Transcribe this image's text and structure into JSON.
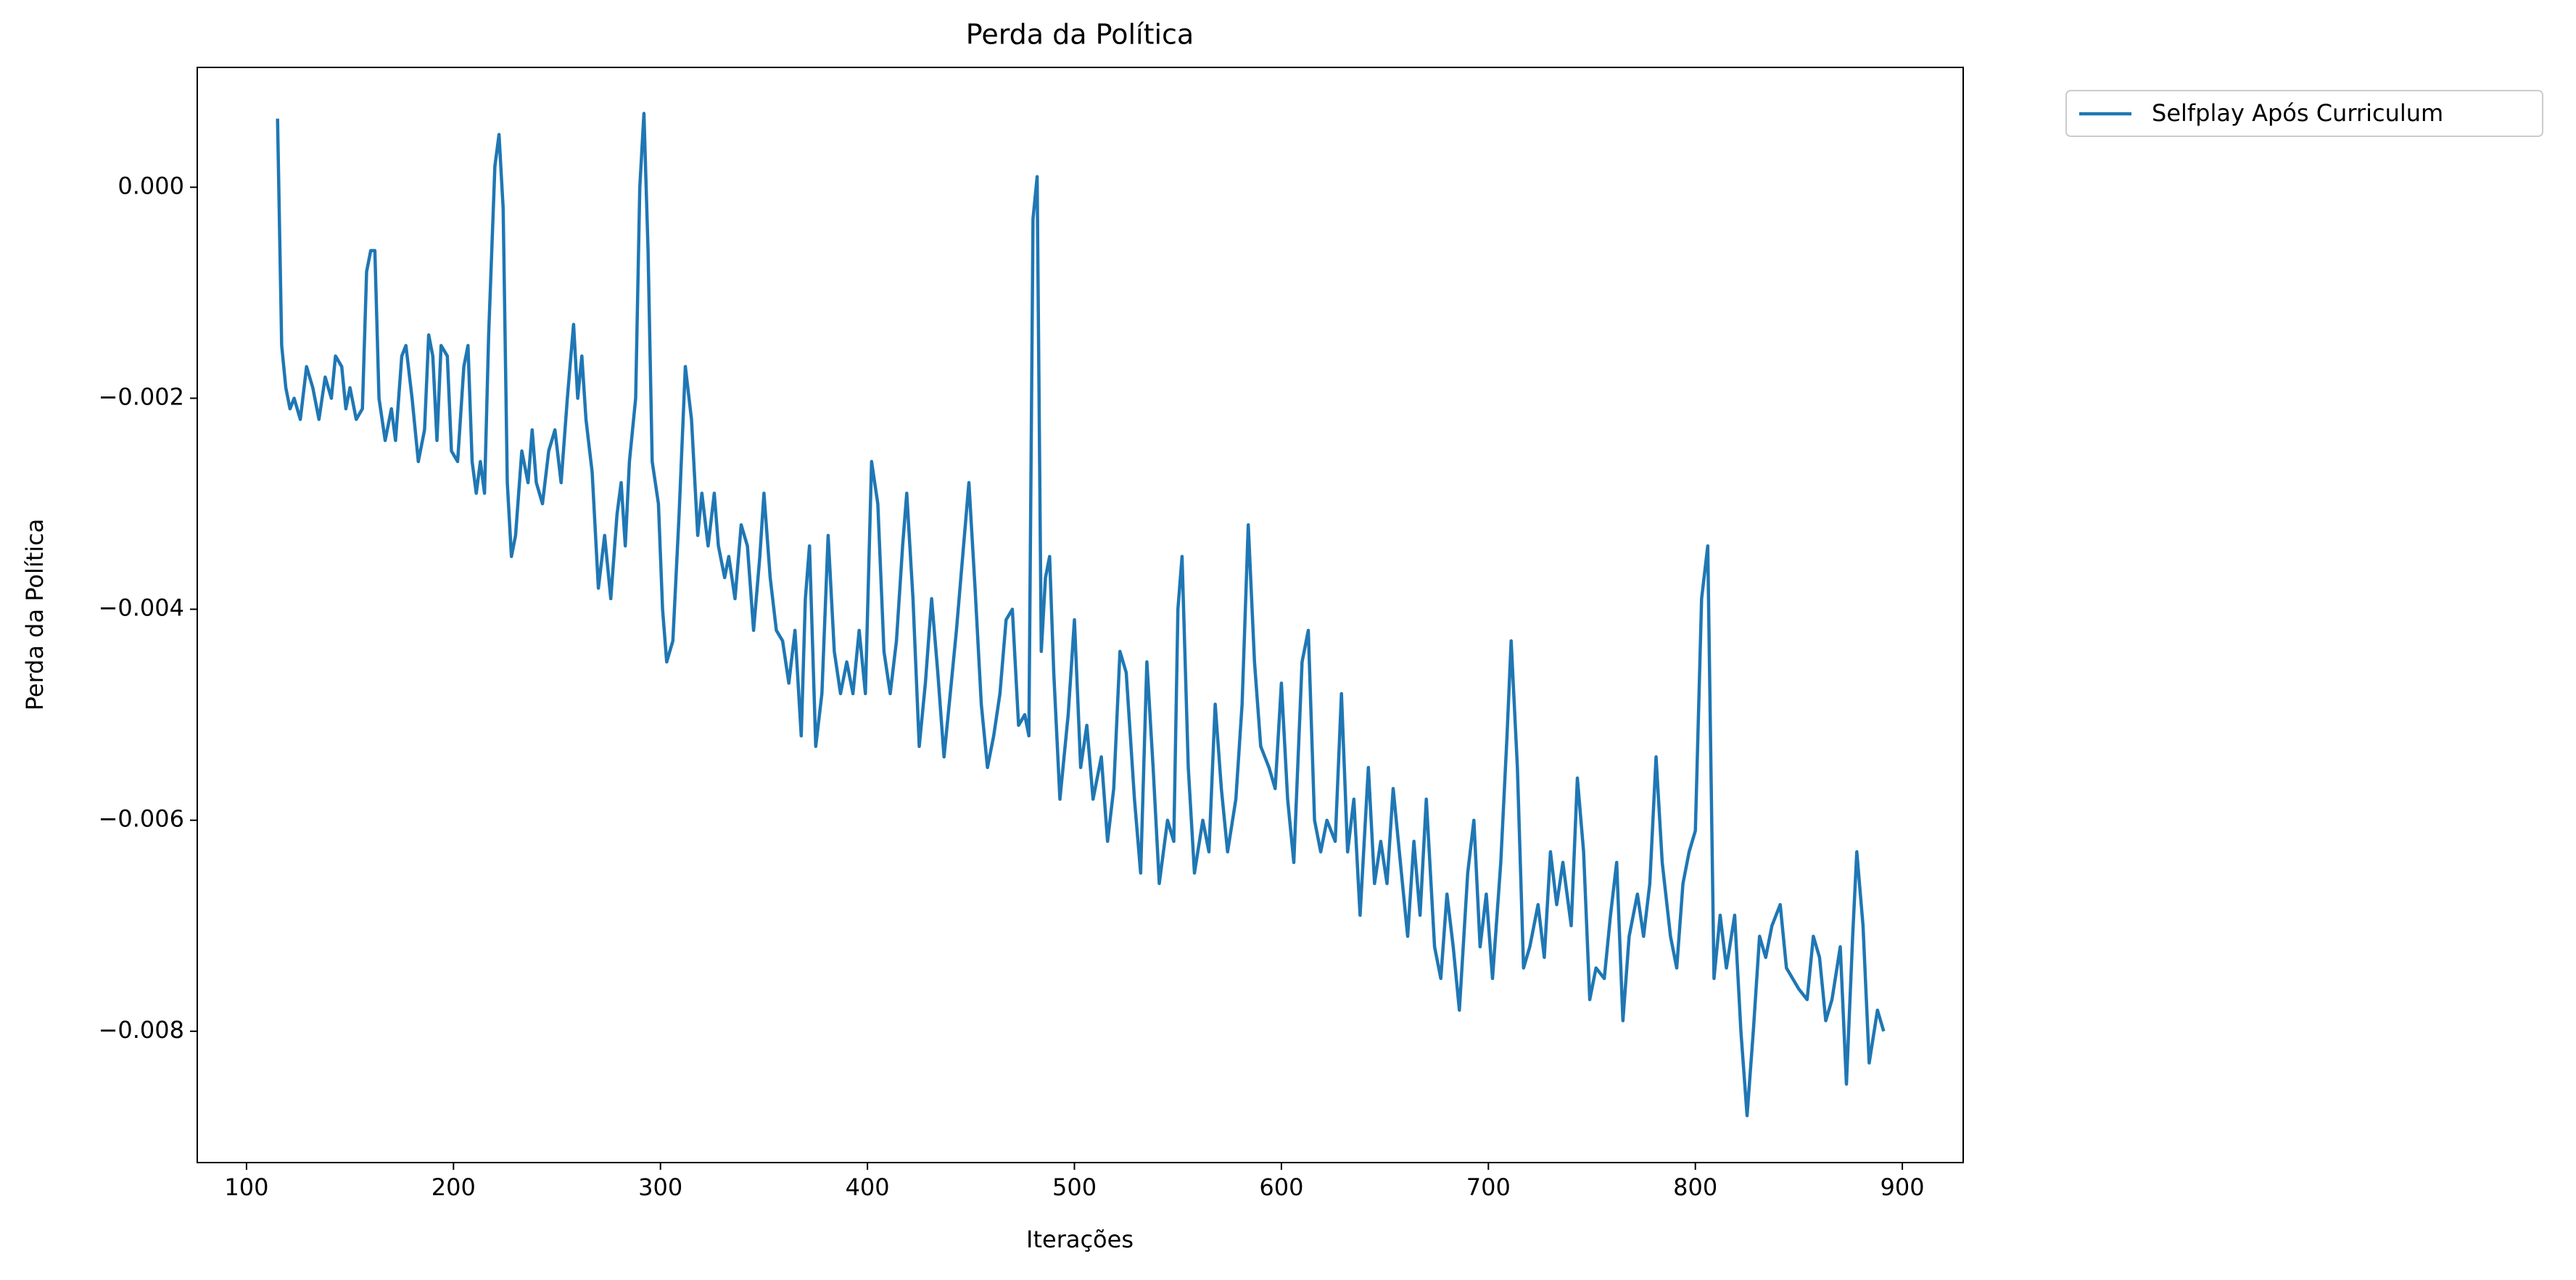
{
  "chart_data": {
    "type": "line",
    "title": "Perda da Política",
    "x_label": "Iterações",
    "y_label": "Perda da Política",
    "legend_position": "outside upper right",
    "xlim": [
      76.2,
      929.4
    ],
    "xticks": [
      100,
      200,
      300,
      400,
      500,
      600,
      700,
      800,
      900
    ],
    "ylim": [
      -0.009245,
      0.001136
    ],
    "yticks": [
      {
        "value": -0.008,
        "label": "−0.008"
      },
      {
        "value": -0.006,
        "label": "−0.006"
      },
      {
        "value": -0.004,
        "label": "−0.004"
      },
      {
        "value": -0.002,
        "label": "−0.002"
      },
      {
        "value": 0,
        "label": "0.000"
      }
    ],
    "x": [
      115,
      117,
      119,
      121,
      123,
      126,
      129,
      132,
      135,
      138,
      141,
      143,
      146,
      148,
      150,
      153,
      156,
      158,
      160,
      162,
      164,
      167,
      170,
      172,
      175,
      177,
      180,
      183,
      186,
      188,
      190,
      192,
      194,
      197,
      199,
      202,
      205,
      207,
      209,
      211,
      213,
      215,
      217,
      220,
      222,
      224,
      226,
      228,
      230,
      233,
      236,
      238,
      240,
      243,
      246,
      249,
      252,
      255,
      258,
      260,
      262,
      264,
      267,
      270,
      273,
      276,
      279,
      281,
      283,
      285,
      288,
      290,
      292,
      294,
      296,
      299,
      301,
      303,
      306,
      309,
      312,
      315,
      318,
      320,
      323,
      326,
      328,
      331,
      333,
      336,
      339,
      342,
      345,
      348,
      350,
      353,
      356,
      359,
      362,
      365,
      368,
      370,
      372,
      375,
      378,
      381,
      384,
      387,
      390,
      393,
      396,
      399,
      402,
      405,
      408,
      411,
      414,
      417,
      419,
      422,
      425,
      428,
      431,
      434,
      437,
      440,
      443,
      446,
      449,
      452,
      455,
      458,
      461,
      464,
      467,
      470,
      473,
      476,
      478,
      480,
      482,
      484,
      486,
      488,
      490,
      493,
      497,
      500,
      503,
      506,
      509,
      513,
      516,
      519,
      522,
      525,
      529,
      532,
      535,
      538,
      541,
      545,
      548,
      550,
      552,
      555,
      558,
      562,
      565,
      568,
      571,
      574,
      578,
      581,
      584,
      587,
      590,
      594,
      597,
      600,
      603,
      606,
      610,
      613,
      616,
      619,
      622,
      626,
      629,
      632,
      635,
      638,
      642,
      645,
      648,
      651,
      654,
      658,
      661,
      664,
      667,
      670,
      674,
      677,
      680,
      683,
      686,
      690,
      693,
      696,
      699,
      702,
      706,
      709,
      711,
      714,
      717,
      720,
      724,
      727,
      730,
      733,
      736,
      740,
      743,
      746,
      749,
      752,
      756,
      759,
      762,
      765,
      768,
      772,
      775,
      778,
      781,
      784,
      788,
      791,
      794,
      797,
      800,
      803,
      806,
      809,
      812,
      815,
      819,
      822,
      825,
      828,
      831,
      834,
      837,
      841,
      844,
      847,
      850,
      854,
      857,
      860,
      863,
      866,
      870,
      873,
      876,
      878,
      881,
      884,
      888,
      891
    ],
    "series": [
      {
        "name": "Selfplay Após Curriculum",
        "color": "#1f77b4",
        "values": [
          0.00065,
          -0.0015,
          -0.0019,
          -0.0021,
          -0.002,
          -0.0022,
          -0.0017,
          -0.0019,
          -0.0022,
          -0.0018,
          -0.002,
          -0.0016,
          -0.0017,
          -0.0021,
          -0.0019,
          -0.0022,
          -0.0021,
          -0.0008,
          -0.0006,
          -0.0006,
          -0.002,
          -0.0024,
          -0.0021,
          -0.0024,
          -0.0016,
          -0.0015,
          -0.002,
          -0.0026,
          -0.0023,
          -0.0014,
          -0.0016,
          -0.0024,
          -0.0015,
          -0.0016,
          -0.0025,
          -0.0026,
          -0.0017,
          -0.0015,
          -0.0026,
          -0.0029,
          -0.0026,
          -0.0029,
          -0.0014,
          0.0002,
          0.0005,
          -0.0002,
          -0.0028,
          -0.0035,
          -0.0033,
          -0.0025,
          -0.0028,
          -0.0023,
          -0.0028,
          -0.003,
          -0.0025,
          -0.0023,
          -0.0028,
          -0.002,
          -0.0013,
          -0.002,
          -0.0016,
          -0.0022,
          -0.0027,
          -0.0038,
          -0.0033,
          -0.0039,
          -0.0031,
          -0.0028,
          -0.0034,
          -0.0026,
          -0.002,
          0.0,
          0.0007,
          -0.0006,
          -0.0026,
          -0.003,
          -0.004,
          -0.0045,
          -0.0043,
          -0.0031,
          -0.0017,
          -0.0022,
          -0.0033,
          -0.0029,
          -0.0034,
          -0.0029,
          -0.0034,
          -0.0037,
          -0.0035,
          -0.0039,
          -0.0032,
          -0.0034,
          -0.0042,
          -0.0035,
          -0.0029,
          -0.0037,
          -0.0042,
          -0.0043,
          -0.0047,
          -0.0042,
          -0.0052,
          -0.0039,
          -0.0034,
          -0.0053,
          -0.0048,
          -0.0033,
          -0.0044,
          -0.0048,
          -0.0045,
          -0.0048,
          -0.0042,
          -0.0048,
          -0.0026,
          -0.003,
          -0.0044,
          -0.0048,
          -0.0043,
          -0.0034,
          -0.0029,
          -0.0039,
          -0.0053,
          -0.0047,
          -0.0039,
          -0.0046,
          -0.0054,
          -0.0048,
          -0.0042,
          -0.0035,
          -0.0028,
          -0.0038,
          -0.0049,
          -0.0055,
          -0.0052,
          -0.0048,
          -0.0041,
          -0.004,
          -0.0051,
          -0.005,
          -0.0052,
          -0.0003,
          0.0001,
          -0.0044,
          -0.0037,
          -0.0035,
          -0.0046,
          -0.0058,
          -0.005,
          -0.0041,
          -0.0055,
          -0.0051,
          -0.0058,
          -0.0054,
          -0.0062,
          -0.0057,
          -0.0044,
          -0.0046,
          -0.0058,
          -0.0065,
          -0.0045,
          -0.0055,
          -0.0066,
          -0.006,
          -0.0062,
          -0.004,
          -0.0035,
          -0.0055,
          -0.0065,
          -0.006,
          -0.0063,
          -0.0049,
          -0.0057,
          -0.0063,
          -0.0058,
          -0.0049,
          -0.0032,
          -0.0045,
          -0.0053,
          -0.0055,
          -0.0057,
          -0.0047,
          -0.0058,
          -0.0064,
          -0.0045,
          -0.0042,
          -0.006,
          -0.0063,
          -0.006,
          -0.0062,
          -0.0048,
          -0.0063,
          -0.0058,
          -0.0069,
          -0.0055,
          -0.0066,
          -0.0062,
          -0.0066,
          -0.0057,
          -0.0065,
          -0.0071,
          -0.0062,
          -0.0069,
          -0.0058,
          -0.0072,
          -0.0075,
          -0.0067,
          -0.0072,
          -0.0078,
          -0.0065,
          -0.006,
          -0.0072,
          -0.0067,
          -0.0075,
          -0.0064,
          -0.0052,
          -0.0043,
          -0.0055,
          -0.0074,
          -0.0072,
          -0.0068,
          -0.0073,
          -0.0063,
          -0.0068,
          -0.0064,
          -0.007,
          -0.0056,
          -0.0063,
          -0.0077,
          -0.0074,
          -0.0075,
          -0.0069,
          -0.0064,
          -0.0079,
          -0.0071,
          -0.0067,
          -0.0071,
          -0.0066,
          -0.0054,
          -0.0064,
          -0.0071,
          -0.0074,
          -0.0066,
          -0.0063,
          -0.0061,
          -0.0039,
          -0.0034,
          -0.0075,
          -0.0069,
          -0.0074,
          -0.0069,
          -0.008,
          -0.0088,
          -0.008,
          -0.0071,
          -0.0073,
          -0.007,
          -0.0068,
          -0.0074,
          -0.0075,
          -0.0076,
          -0.0077,
          -0.0071,
          -0.0073,
          -0.0079,
          -0.0077,
          -0.0072,
          -0.0085,
          -0.0071,
          -0.0063,
          -0.007,
          -0.0083,
          -0.0078,
          -0.008
        ]
      }
    ]
  }
}
